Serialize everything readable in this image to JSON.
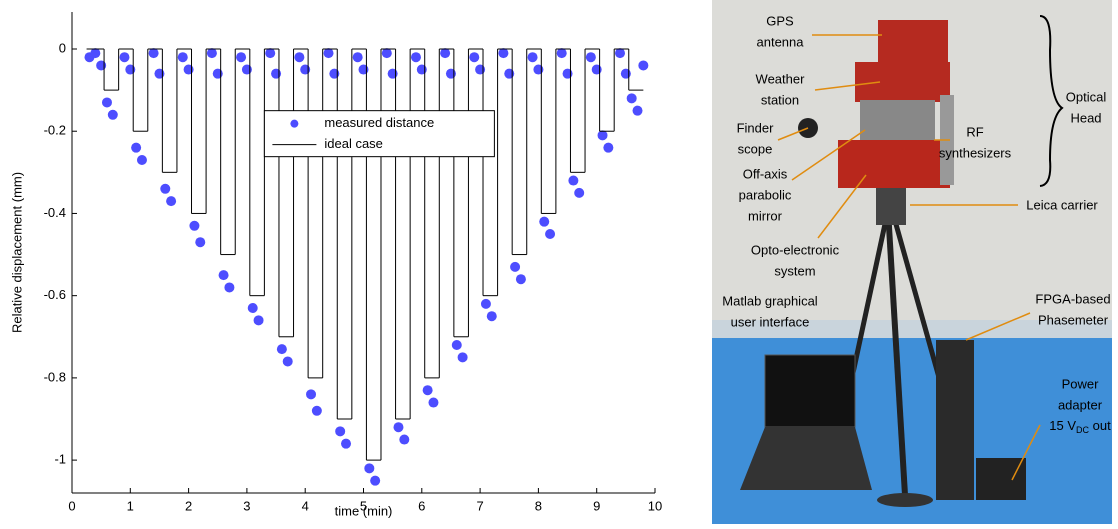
{
  "chart_data": {
    "type": "scatter",
    "xlabel": "time (min)",
    "ylabel": "Relative displacement (mm)",
    "xlim": [
      0,
      10
    ],
    "ylim": [
      -1.08,
      0.09
    ],
    "xticks": [
      0,
      1,
      2,
      3,
      4,
      5,
      6,
      7,
      8,
      9,
      10
    ],
    "yticks": [
      -1,
      -0.8,
      -0.6,
      -0.4,
      -0.2,
      0
    ],
    "series": [
      {
        "name": "measured distance",
        "color": "#4d4dff",
        "marker": "circle",
        "x": [
          0.3,
          0.4,
          0.5,
          0.6,
          0.7,
          0.9,
          1.0,
          1.1,
          1.2,
          1.4,
          1.5,
          1.6,
          1.7,
          1.9,
          2.0,
          2.1,
          2.2,
          2.4,
          2.5,
          2.6,
          2.7,
          2.9,
          3.0,
          3.1,
          3.2,
          3.4,
          3.5,
          3.6,
          3.7,
          3.9,
          4.0,
          4.1,
          4.2,
          4.4,
          4.5,
          4.6,
          4.7,
          4.9,
          5.0,
          5.1,
          5.2,
          5.4,
          5.5,
          5.6,
          5.7,
          5.9,
          6.0,
          6.1,
          6.2,
          6.4,
          6.5,
          6.6,
          6.7,
          6.9,
          7.0,
          7.1,
          7.2,
          7.4,
          7.5,
          7.6,
          7.7,
          7.9,
          8.0,
          8.1,
          8.2,
          8.4,
          8.5,
          8.6,
          8.7,
          8.9,
          9.0,
          9.1,
          9.2,
          9.4,
          9.5,
          9.6,
          9.7,
          9.8
        ],
        "values": [
          -0.02,
          -0.01,
          -0.04,
          -0.13,
          -0.16,
          -0.02,
          -0.05,
          -0.24,
          -0.27,
          -0.01,
          -0.06,
          -0.34,
          -0.37,
          -0.02,
          -0.05,
          -0.43,
          -0.47,
          -0.01,
          -0.06,
          -0.55,
          -0.58,
          -0.02,
          -0.05,
          -0.63,
          -0.66,
          -0.01,
          -0.06,
          -0.73,
          -0.76,
          -0.02,
          -0.05,
          -0.84,
          -0.88,
          -0.01,
          -0.06,
          -0.93,
          -0.96,
          -0.02,
          -0.05,
          -1.02,
          -1.05,
          -0.01,
          -0.06,
          -0.92,
          -0.95,
          -0.02,
          -0.05,
          -0.83,
          -0.86,
          -0.01,
          -0.06,
          -0.72,
          -0.75,
          -0.02,
          -0.05,
          -0.62,
          -0.65,
          -0.01,
          -0.06,
          -0.53,
          -0.56,
          -0.02,
          -0.05,
          -0.42,
          -0.45,
          -0.01,
          -0.06,
          -0.32,
          -0.35,
          -0.02,
          -0.05,
          -0.21,
          -0.24,
          -0.01,
          -0.06,
          -0.12,
          -0.15,
          -0.04
        ]
      },
      {
        "name": "ideal case",
        "color": "#000000",
        "marker": "step",
        "edges": [
          0.25,
          0.55,
          0.8,
          1.05,
          1.3,
          1.55,
          1.8,
          2.05,
          2.3,
          2.55,
          2.8,
          3.05,
          3.3,
          3.55,
          3.8,
          4.05,
          4.3,
          4.55,
          4.8,
          5.05,
          5.3,
          5.55,
          5.8,
          6.05,
          6.3,
          6.55,
          6.8,
          7.05,
          7.3,
          7.55,
          7.8,
          8.05,
          8.3,
          8.55,
          8.8,
          9.05,
          9.3,
          9.55,
          9.8
        ],
        "values": [
          0,
          -0.1,
          0,
          -0.2,
          0,
          -0.3,
          0,
          -0.4,
          0,
          -0.5,
          0,
          -0.6,
          0,
          -0.7,
          0,
          -0.8,
          0,
          -0.9,
          0,
          -1,
          0,
          -0.9,
          0,
          -0.8,
          0,
          -0.7,
          0,
          -0.6,
          0,
          -0.5,
          0,
          -0.4,
          0,
          -0.3,
          0,
          -0.2,
          0,
          -0.1
        ]
      }
    ]
  },
  "photo": {
    "annotations": [
      {
        "lines": [
          "GPS",
          "antenna"
        ]
      },
      {
        "lines": [
          "Weather",
          "station"
        ]
      },
      {
        "lines": [
          "Finder",
          "scope"
        ]
      },
      {
        "lines": [
          "Off-axis",
          "parabolic",
          "mirror"
        ]
      },
      {
        "lines": [
          "Opto-electronic",
          "system"
        ]
      },
      {
        "lines": [
          "Matlab graphical",
          "user interface"
        ]
      },
      {
        "lines": [
          "RF",
          "synthesizers"
        ]
      },
      {
        "lines": [
          "Optical",
          "Head"
        ]
      },
      {
        "lines": [
          "Leica carrier"
        ]
      },
      {
        "lines": [
          "FPGA-based",
          "Phasemeter"
        ]
      },
      {
        "lines": [
          "Power",
          "adapter"
        ],
        "sub_line": {
          "before": "15 V",
          "sub": "DC",
          "after": " out"
        }
      }
    ]
  }
}
